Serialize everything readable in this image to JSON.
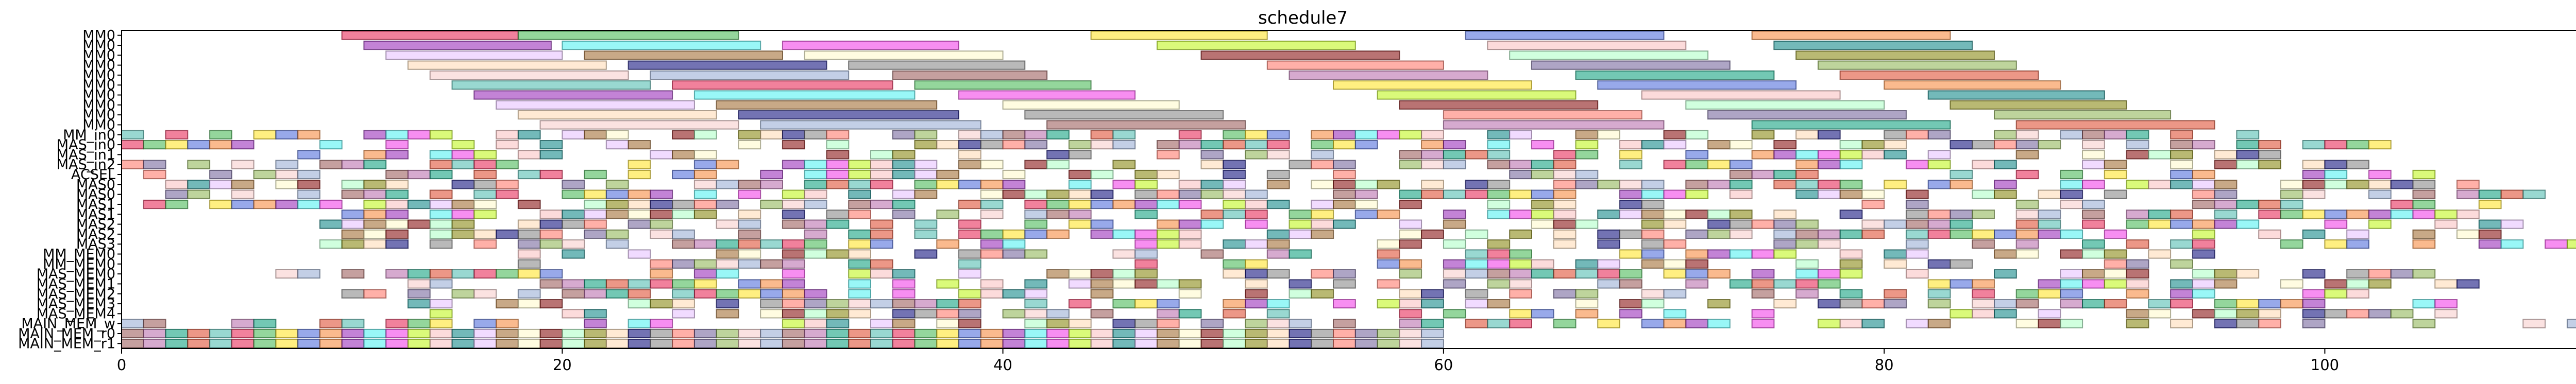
{
  "chart_data": {
    "type": "gantt",
    "title": "schedule7",
    "xlabel": "",
    "ylabel": "",
    "xlim": [
      0,
      112.5
    ],
    "xticks": [
      0,
      20,
      40,
      60,
      80,
      100
    ],
    "xtick_labels": [
      "0",
      "20",
      "40",
      "60",
      "80",
      "100"
    ],
    "rows": [
      "MM0",
      "MM0",
      "MM0",
      "MM0",
      "MM0",
      "MM0",
      "MM0",
      "MM0",
      "MM0",
      "MM0",
      "MM_in0",
      "MAS_in0",
      "MAS_in1",
      "MAS_in2",
      "ACSEL",
      "MAS0",
      "MAS0",
      "MAS1",
      "MAS1",
      "MAS2",
      "MAS2",
      "MAS3",
      "MM_MEM0",
      "MM_MEM0",
      "MAS_MEM0",
      "MAS_MEM1",
      "MAS_MEM2",
      "MAS_MEM3",
      "MAS_MEM4",
      "MAIN_MEM_w",
      "MAIN_MEM_r0",
      "MAIN_MEM_r1"
    ],
    "palette": [
      "#e6194b",
      "#3cb44b",
      "#ffe119",
      "#4363d8",
      "#f58231",
      "#911eb4",
      "#46f0f0",
      "#f032e6",
      "#bcf60c",
      "#fabebe",
      "#008080",
      "#e6beff",
      "#9a6324",
      "#fffac8",
      "#800000",
      "#aaffc3",
      "#808000",
      "#ffd8b1",
      "#000075",
      "#808080",
      "#ff6f61",
      "#6b5b95",
      "#88b04b",
      "#f7cac9",
      "#92a8d1",
      "#955251",
      "#b565a7",
      "#009b77",
      "#dd4124",
      "#45b8ac"
    ],
    "tasks": [
      {
        "row": 0,
        "start": 10.0,
        "end": 18.0
      },
      {
        "row": 0,
        "start": 18.0,
        "end": 28.0
      },
      {
        "row": 0,
        "start": 44.0,
        "end": 52.0
      },
      {
        "row": 0,
        "start": 61.0,
        "end": 70.0
      },
      {
        "row": 0,
        "start": 74.0,
        "end": 83.0
      },
      {
        "row": 1,
        "start": 11.0,
        "end": 19.5
      },
      {
        "row": 1,
        "start": 20.0,
        "end": 29.0
      },
      {
        "row": 1,
        "start": 30.0,
        "end": 38.0
      },
      {
        "row": 1,
        "start": 47.0,
        "end": 56.0
      },
      {
        "row": 1,
        "start": 62.0,
        "end": 71.0
      },
      {
        "row": 1,
        "start": 75.0,
        "end": 84.0
      },
      {
        "row": 2,
        "start": 12.0,
        "end": 20.0
      },
      {
        "row": 2,
        "start": 21.0,
        "end": 30.0
      },
      {
        "row": 2,
        "start": 31.0,
        "end": 40.0
      },
      {
        "row": 2,
        "start": 49.0,
        "end": 58.0
      },
      {
        "row": 2,
        "start": 63.0,
        "end": 72.0
      },
      {
        "row": 2,
        "start": 76.0,
        "end": 85.0
      },
      {
        "row": 3,
        "start": 13.0,
        "end": 22.0
      },
      {
        "row": 3,
        "start": 23.0,
        "end": 32.0
      },
      {
        "row": 3,
        "start": 33.0,
        "end": 41.0
      },
      {
        "row": 3,
        "start": 52.0,
        "end": 60.0
      },
      {
        "row": 3,
        "start": 64.0,
        "end": 73.0
      },
      {
        "row": 3,
        "start": 77.0,
        "end": 86.0
      },
      {
        "row": 4,
        "start": 14.0,
        "end": 23.0
      },
      {
        "row": 4,
        "start": 24.0,
        "end": 33.0
      },
      {
        "row": 4,
        "start": 35.0,
        "end": 42.0
      },
      {
        "row": 4,
        "start": 53.0,
        "end": 62.0
      },
      {
        "row": 4,
        "start": 66.0,
        "end": 75.0
      },
      {
        "row": 4,
        "start": 78.0,
        "end": 87.0
      },
      {
        "row": 5,
        "start": 15.0,
        "end": 24.0
      },
      {
        "row": 5,
        "start": 25.0,
        "end": 35.0
      },
      {
        "row": 5,
        "start": 36.0,
        "end": 44.0
      },
      {
        "row": 5,
        "start": 55.0,
        "end": 64.0
      },
      {
        "row": 5,
        "start": 67.0,
        "end": 76.0
      },
      {
        "row": 5,
        "start": 80.0,
        "end": 88.0
      },
      {
        "row": 6,
        "start": 16.0,
        "end": 25.0
      },
      {
        "row": 6,
        "start": 26.0,
        "end": 36.0
      },
      {
        "row": 6,
        "start": 38.0,
        "end": 46.0
      },
      {
        "row": 6,
        "start": 57.0,
        "end": 66.0
      },
      {
        "row": 6,
        "start": 69.0,
        "end": 78.0
      },
      {
        "row": 6,
        "start": 82.0,
        "end": 90.0
      },
      {
        "row": 7,
        "start": 17.0,
        "end": 26.0
      },
      {
        "row": 7,
        "start": 27.0,
        "end": 37.0
      },
      {
        "row": 7,
        "start": 40.0,
        "end": 48.0
      },
      {
        "row": 7,
        "start": 58.0,
        "end": 67.0
      },
      {
        "row": 7,
        "start": 71.0,
        "end": 80.0
      },
      {
        "row": 7,
        "start": 83.0,
        "end": 91.0
      },
      {
        "row": 8,
        "start": 18.0,
        "end": 27.0
      },
      {
        "row": 8,
        "start": 28.0,
        "end": 38.0
      },
      {
        "row": 8,
        "start": 41.0,
        "end": 50.0
      },
      {
        "row": 8,
        "start": 60.0,
        "end": 69.0
      },
      {
        "row": 8,
        "start": 72.0,
        "end": 81.0
      },
      {
        "row": 8,
        "start": 85.0,
        "end": 93.0
      },
      {
        "row": 9,
        "start": 19.0,
        "end": 28.0
      },
      {
        "row": 9,
        "start": 29.0,
        "end": 39.0
      },
      {
        "row": 9,
        "start": 42.0,
        "end": 51.0
      },
      {
        "row": 9,
        "start": 60.0,
        "end": 70.0
      },
      {
        "row": 9,
        "start": 74.0,
        "end": 83.0
      },
      {
        "row": 9,
        "start": 86.0,
        "end": 95.0
      }
    ],
    "fill": {
      "seed": 7,
      "rows": [
        {
          "row": 10,
          "start": 0,
          "end": 97,
          "density": 0.62
        },
        {
          "row": 11,
          "start": 0,
          "end": 103,
          "density": 0.58
        },
        {
          "row": 12,
          "start": 8,
          "end": 98,
          "density": 0.55
        },
        {
          "row": 13,
          "start": 0,
          "end": 103,
          "density": 0.5
        },
        {
          "row": 14,
          "start": 0,
          "end": 105,
          "density": 0.45
        },
        {
          "row": 15,
          "start": 2,
          "end": 107,
          "density": 0.65
        },
        {
          "row": 16,
          "start": 0,
          "end": 110,
          "density": 0.6
        },
        {
          "row": 17,
          "start": 1,
          "end": 108,
          "density": 0.66
        },
        {
          "row": 18,
          "start": 9,
          "end": 107,
          "density": 0.62
        },
        {
          "row": 19,
          "start": 8,
          "end": 110,
          "density": 0.6
        },
        {
          "row": 20,
          "start": 8,
          "end": 111,
          "density": 0.55
        },
        {
          "row": 21,
          "start": 9,
          "end": 112,
          "density": 0.55
        },
        {
          "row": 22,
          "start": 18,
          "end": 95,
          "density": 0.5
        },
        {
          "row": 23,
          "start": 18,
          "end": 97,
          "density": 0.5
        },
        {
          "row": 24,
          "start": 7,
          "end": 105,
          "density": 0.55
        },
        {
          "row": 25,
          "start": 7,
          "end": 109,
          "density": 0.55
        },
        {
          "row": 26,
          "start": 7,
          "end": 108,
          "density": 0.5
        },
        {
          "row": 27,
          "start": 12,
          "end": 106,
          "density": 0.5
        },
        {
          "row": 28,
          "start": 12,
          "end": 109,
          "density": 0.5
        },
        {
          "row": 29,
          "start": 0,
          "end": 112,
          "density": 0.55
        },
        {
          "row": 30,
          "start": 0,
          "end": 60,
          "density": 1.0
        },
        {
          "row": 31,
          "start": 0,
          "end": 60,
          "density": 1.0
        }
      ]
    }
  }
}
